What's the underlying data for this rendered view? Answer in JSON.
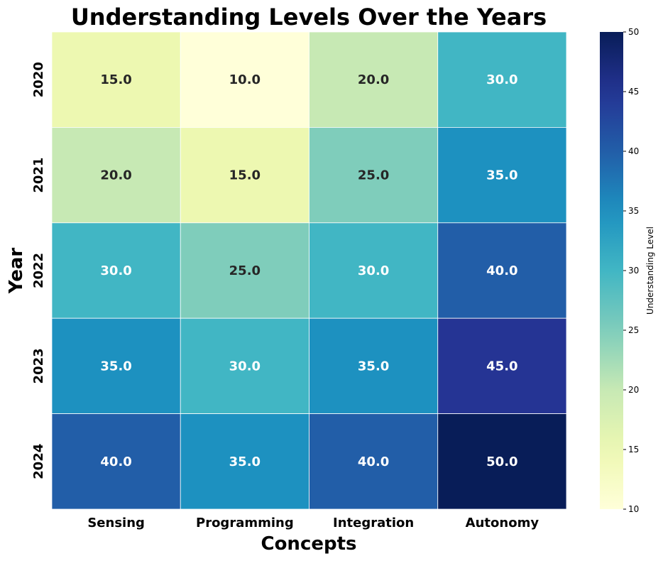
{
  "chart_data": {
    "type": "heatmap",
    "title": "Understanding Levels Over the Years",
    "xlabel": "Concepts",
    "ylabel": "Year",
    "x_categories": [
      "Sensing",
      "Programming",
      "Integration",
      "Autonomy"
    ],
    "y_categories": [
      "2020",
      "2021",
      "2022",
      "2023",
      "2024"
    ],
    "values": [
      [
        15.0,
        10.0,
        20.0,
        30.0
      ],
      [
        20.0,
        15.0,
        25.0,
        35.0
      ],
      [
        30.0,
        25.0,
        30.0,
        40.0
      ],
      [
        35.0,
        30.0,
        35.0,
        45.0
      ],
      [
        40.0,
        35.0,
        40.0,
        50.0
      ]
    ],
    "cell_labels": [
      [
        "15.0",
        "10.0",
        "20.0",
        "30.0"
      ],
      [
        "20.0",
        "15.0",
        "25.0",
        "35.0"
      ],
      [
        "30.0",
        "25.0",
        "30.0",
        "40.0"
      ],
      [
        "35.0",
        "30.0",
        "35.0",
        "45.0"
      ],
      [
        "40.0",
        "35.0",
        "40.0",
        "50.0"
      ]
    ],
    "colormap": "YlGnBu",
    "vmin": 10,
    "vmax": 50,
    "colorbar": {
      "label": "Understanding Level",
      "ticks": [
        "10",
        "15",
        "20",
        "25",
        "30",
        "35",
        "40",
        "45",
        "50"
      ]
    }
  }
}
